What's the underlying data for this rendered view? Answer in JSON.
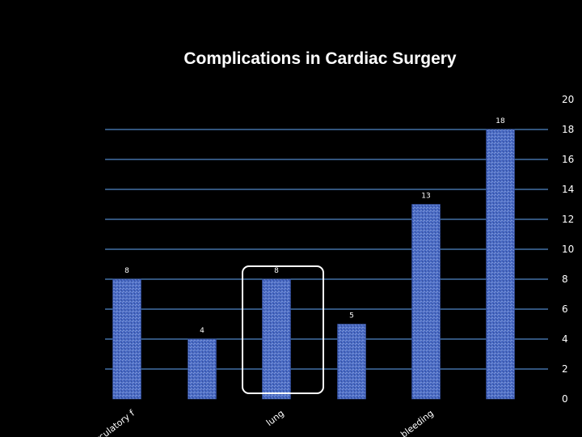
{
  "chart_data": {
    "type": "bar",
    "title": "Complications in Cardiac Surgery",
    "categories": [
      "circulatory f",
      "",
      "lung",
      "",
      "bleeding",
      ""
    ],
    "values": [
      8,
      4,
      8,
      5,
      13,
      18
    ],
    "data_labels": [
      "8",
      "4",
      "8",
      "5",
      "13",
      "18"
    ],
    "ylim": [
      0,
      20
    ],
    "yticks": [
      "0",
      "2",
      "4",
      "6",
      "8",
      "10",
      "12",
      "14",
      "16",
      "18",
      "20"
    ],
    "y_axis_side": "right",
    "grid": true,
    "legend": "none",
    "highlight_category": "lung",
    "colors": {
      "background": "#000000",
      "bar": "#4a6bc4",
      "bar_texture": "#8fa6e0",
      "gridline": "#4f86c6",
      "text": "#ffffff",
      "highlight_box": "#ffffff"
    }
  }
}
